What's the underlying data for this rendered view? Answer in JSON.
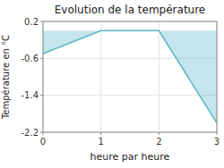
{
  "chart_data": {
    "type": "area",
    "title": "Evolution de la température",
    "x_label": "heure par heure",
    "y_label": "Température en °C",
    "x": [
      0,
      1,
      2,
      3
    ],
    "values": [
      -0.5,
      0.0,
      0.0,
      -2.0
    ],
    "color": "#5ab5c8",
    "xlim": [
      0,
      3
    ],
    "ylim": [
      -2.2,
      0.2
    ],
    "xticks": [
      0,
      1,
      2,
      3
    ],
    "yticks": [
      -2.2,
      -1.4,
      -0.6,
      0.2
    ],
    "grid": true
  }
}
